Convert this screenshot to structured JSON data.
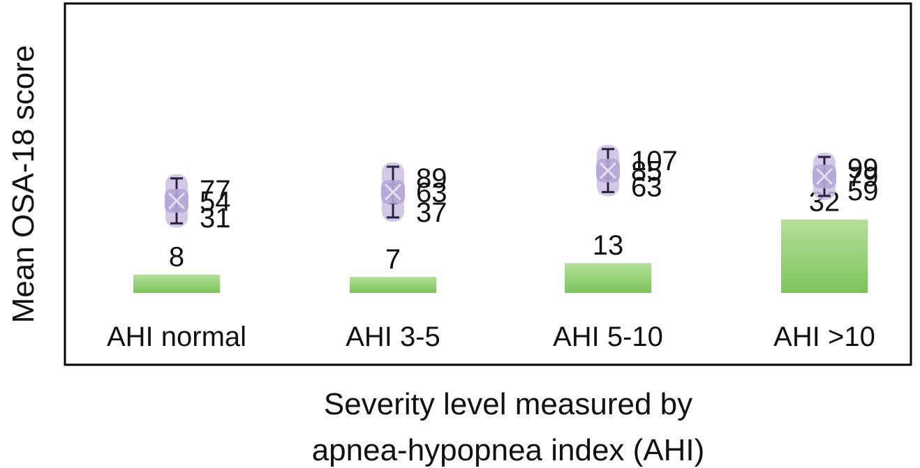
{
  "chart_data": {
    "type": "bar",
    "title": "",
    "ylabel": "Mean OSA-18 score",
    "xlabel_lines": [
      "Severity level measured by",
      "apnea-hypopnea index (AHI)"
    ],
    "categories": [
      "AHI normal",
      "AHI 3-5",
      "AHI 5-10",
      "AHI >10"
    ],
    "bar_values": [
      8,
      7,
      13,
      32
    ],
    "ranges": [
      {
        "low": 31,
        "mean": 54,
        "high": 77
      },
      {
        "low": 37,
        "mean": 63,
        "high": 89
      },
      {
        "low": 63,
        "mean": 85,
        "high": 107
      },
      {
        "low": 59,
        "mean": 79,
        "high": 99
      }
    ],
    "grid": false,
    "legend": "none",
    "colors": {
      "bar": "#7cc35a",
      "bar_light": "#b4e09a",
      "range_band": "#c9bfe3",
      "range_line": "#2b1f3f",
      "mean_marker": "#b2a6d6",
      "frame": "#000000"
    }
  }
}
